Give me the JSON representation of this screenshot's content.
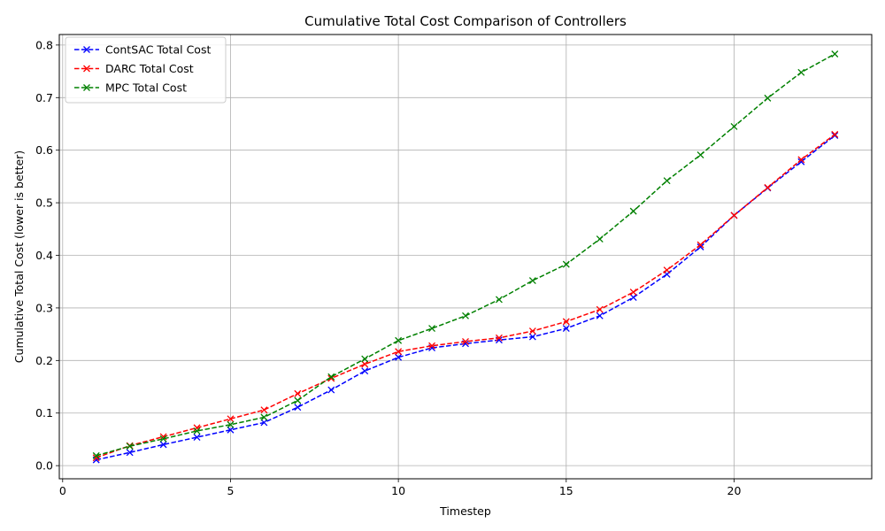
{
  "chart_data": {
    "type": "line",
    "title": "Cumulative Total Cost Comparison of Controllers",
    "xlabel": "Timestep",
    "ylabel": "Cumulative Total Cost (lower is better)",
    "xlim": [
      -0.1,
      24.1
    ],
    "ylim": [
      -0.025,
      0.82
    ],
    "xticks": [
      0,
      5,
      10,
      15,
      20
    ],
    "yticks": [
      0.0,
      0.1,
      0.2,
      0.3,
      0.4,
      0.5,
      0.6,
      0.7,
      0.8
    ],
    "grid": true,
    "legend_position": "upper-left",
    "x": [
      1,
      2,
      3,
      4,
      5,
      6,
      7,
      8,
      9,
      10,
      11,
      12,
      13,
      14,
      15,
      16,
      17,
      18,
      19,
      20,
      21,
      22,
      23
    ],
    "series": [
      {
        "name": "ContSAC Total Cost",
        "color": "#0000ff",
        "marker": "x",
        "line_style": "dashed",
        "values": [
          0.011,
          0.025,
          0.04,
          0.054,
          0.068,
          0.082,
          0.111,
          0.144,
          0.18,
          0.206,
          0.224,
          0.232,
          0.239,
          0.245,
          0.261,
          0.285,
          0.32,
          0.364,
          0.416,
          0.476,
          0.528,
          0.578,
          0.628
        ]
      },
      {
        "name": "DARC Total Cost",
        "color": "#ff0000",
        "marker": "x",
        "line_style": "dashed",
        "values": [
          0.015,
          0.038,
          0.055,
          0.072,
          0.089,
          0.106,
          0.137,
          0.166,
          0.193,
          0.217,
          0.228,
          0.236,
          0.243,
          0.256,
          0.274,
          0.297,
          0.33,
          0.372,
          0.42,
          0.476,
          0.529,
          0.582,
          0.63
        ]
      },
      {
        "name": "MPC Total Cost",
        "color": "#008000",
        "marker": "x",
        "line_style": "dashed",
        "values": [
          0.019,
          0.037,
          0.051,
          0.066,
          0.078,
          0.092,
          0.124,
          0.169,
          0.203,
          0.238,
          0.261,
          0.285,
          0.316,
          0.352,
          0.383,
          0.431,
          0.484,
          0.542,
          0.591,
          0.645,
          0.699,
          0.748,
          0.783
        ]
      }
    ]
  }
}
